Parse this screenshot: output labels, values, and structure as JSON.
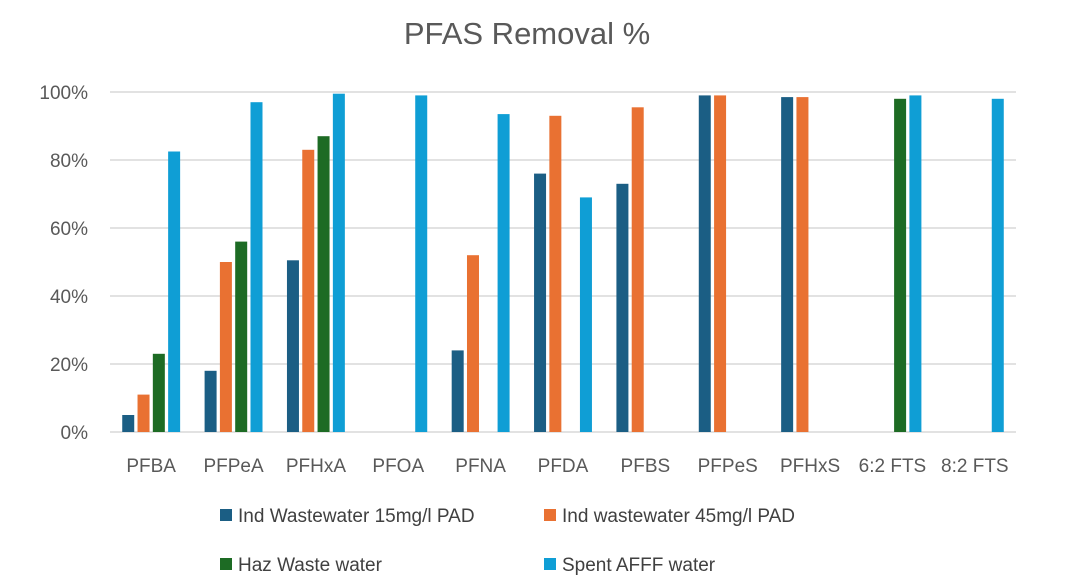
{
  "chart_data": {
    "type": "bar",
    "title": "PFAS Removal %",
    "xlabel": "",
    "ylabel": "",
    "ylim": [
      0,
      100
    ],
    "yticks": [
      "0%",
      "20%",
      "40%",
      "60%",
      "80%",
      "100%"
    ],
    "grid": true,
    "legend_position": "bottom",
    "categories": [
      "PFBA",
      "PFPeA",
      "PFHxA",
      "PFOA",
      "PFNA",
      "PFDA",
      "PFBS",
      "PFPeS",
      "PFHxS",
      "6:2 FTS",
      "8:2 FTS"
    ],
    "series": [
      {
        "name": "Ind Wastewater 15mg/l PAD",
        "color": "#1b5e84",
        "values": [
          5,
          18,
          50.5,
          null,
          24,
          76,
          73,
          99,
          98.5,
          null,
          null
        ]
      },
      {
        "name": "Ind wastewater 45mg/l PAD",
        "color": "#e97132",
        "values": [
          11,
          50,
          83,
          null,
          52,
          93,
          95.5,
          99,
          98.5,
          null,
          null
        ]
      },
      {
        "name": "Haz Waste water",
        "color": "#1d6b24",
        "values": [
          23,
          56,
          87,
          null,
          null,
          null,
          null,
          null,
          null,
          98,
          null
        ]
      },
      {
        "name": "Spent AFFF water",
        "color": "#0f9ed5",
        "values": [
          82.5,
          97,
          99.5,
          99,
          93.5,
          69,
          null,
          null,
          null,
          99,
          98
        ]
      }
    ]
  }
}
